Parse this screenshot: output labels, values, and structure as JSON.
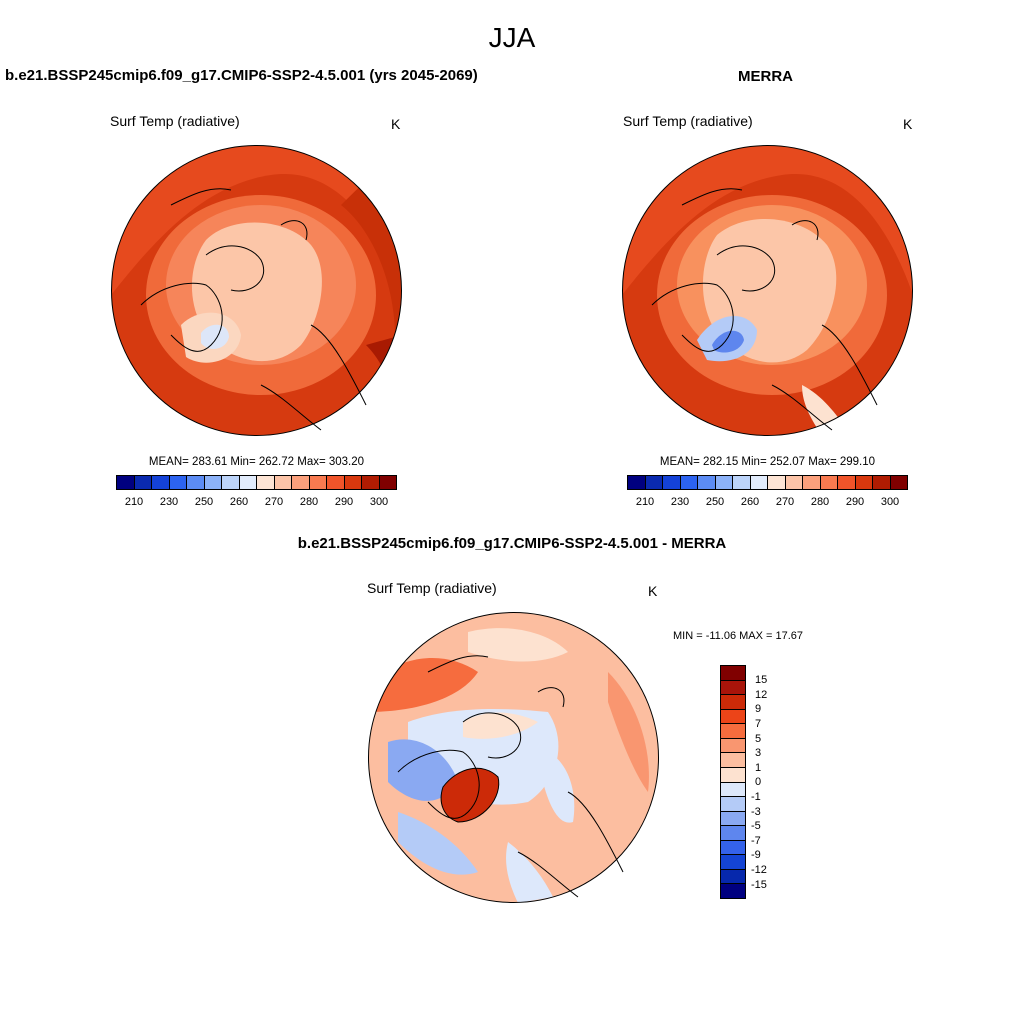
{
  "figure": {
    "season": "JJA"
  },
  "panels": {
    "model": {
      "title": "b.e21.BSSP245cmip6.f09_g17.CMIP6-SSP2-4.5.001 (yrs 2045-2069)",
      "variable": "Surf Temp (radiative)",
      "units": "K",
      "stats": "MEAN= 283.61  Min= 262.72  Max= 303.20"
    },
    "obs": {
      "title": "MERRA",
      "variable": "Surf Temp (radiative)",
      "units": "K",
      "stats": "MEAN= 282.15  Min= 252.07  Max= 299.10"
    },
    "diff": {
      "title": "b.e21.BSSP245cmip6.f09_g17.CMIP6-SSP2-4.5.001 - MERRA",
      "variable": "Surf Temp (radiative)",
      "units": "K",
      "stats": "MIN = -11.06 MAX =  17.67"
    }
  },
  "colorbars": {
    "absolute": {
      "labels": [
        "210",
        "230",
        "250",
        "260",
        "270",
        "280",
        "290",
        "300"
      ],
      "colors": [
        "#000080",
        "#0a2ab0",
        "#1442d8",
        "#2c63f0",
        "#5c8cf4",
        "#8cb2f8",
        "#bcd4fa",
        "#e2ecfc",
        "#fde4d4",
        "#fcc4a8",
        "#fba07c",
        "#f87a50",
        "#f0542a",
        "#d8380e",
        "#b01c02",
        "#800000"
      ]
    },
    "difference": {
      "labels": [
        "15",
        "12",
        "9",
        "7",
        "5",
        "3",
        "1",
        "0",
        "-1",
        "-3",
        "-5",
        "-7",
        "-9",
        "-12",
        "-15"
      ],
      "colors": [
        "#800000",
        "#a8140a",
        "#cc2a08",
        "#ec4418",
        "#f66c3e",
        "#f99670",
        "#fcbea0",
        "#fde2d0",
        "#dde8fb",
        "#b4cbf7",
        "#8aa9f2",
        "#5e86ee",
        "#3462ea",
        "#1444d4",
        "#0628ac",
        "#000080"
      ]
    }
  },
  "icons": [
    "polar-projection-map"
  ]
}
